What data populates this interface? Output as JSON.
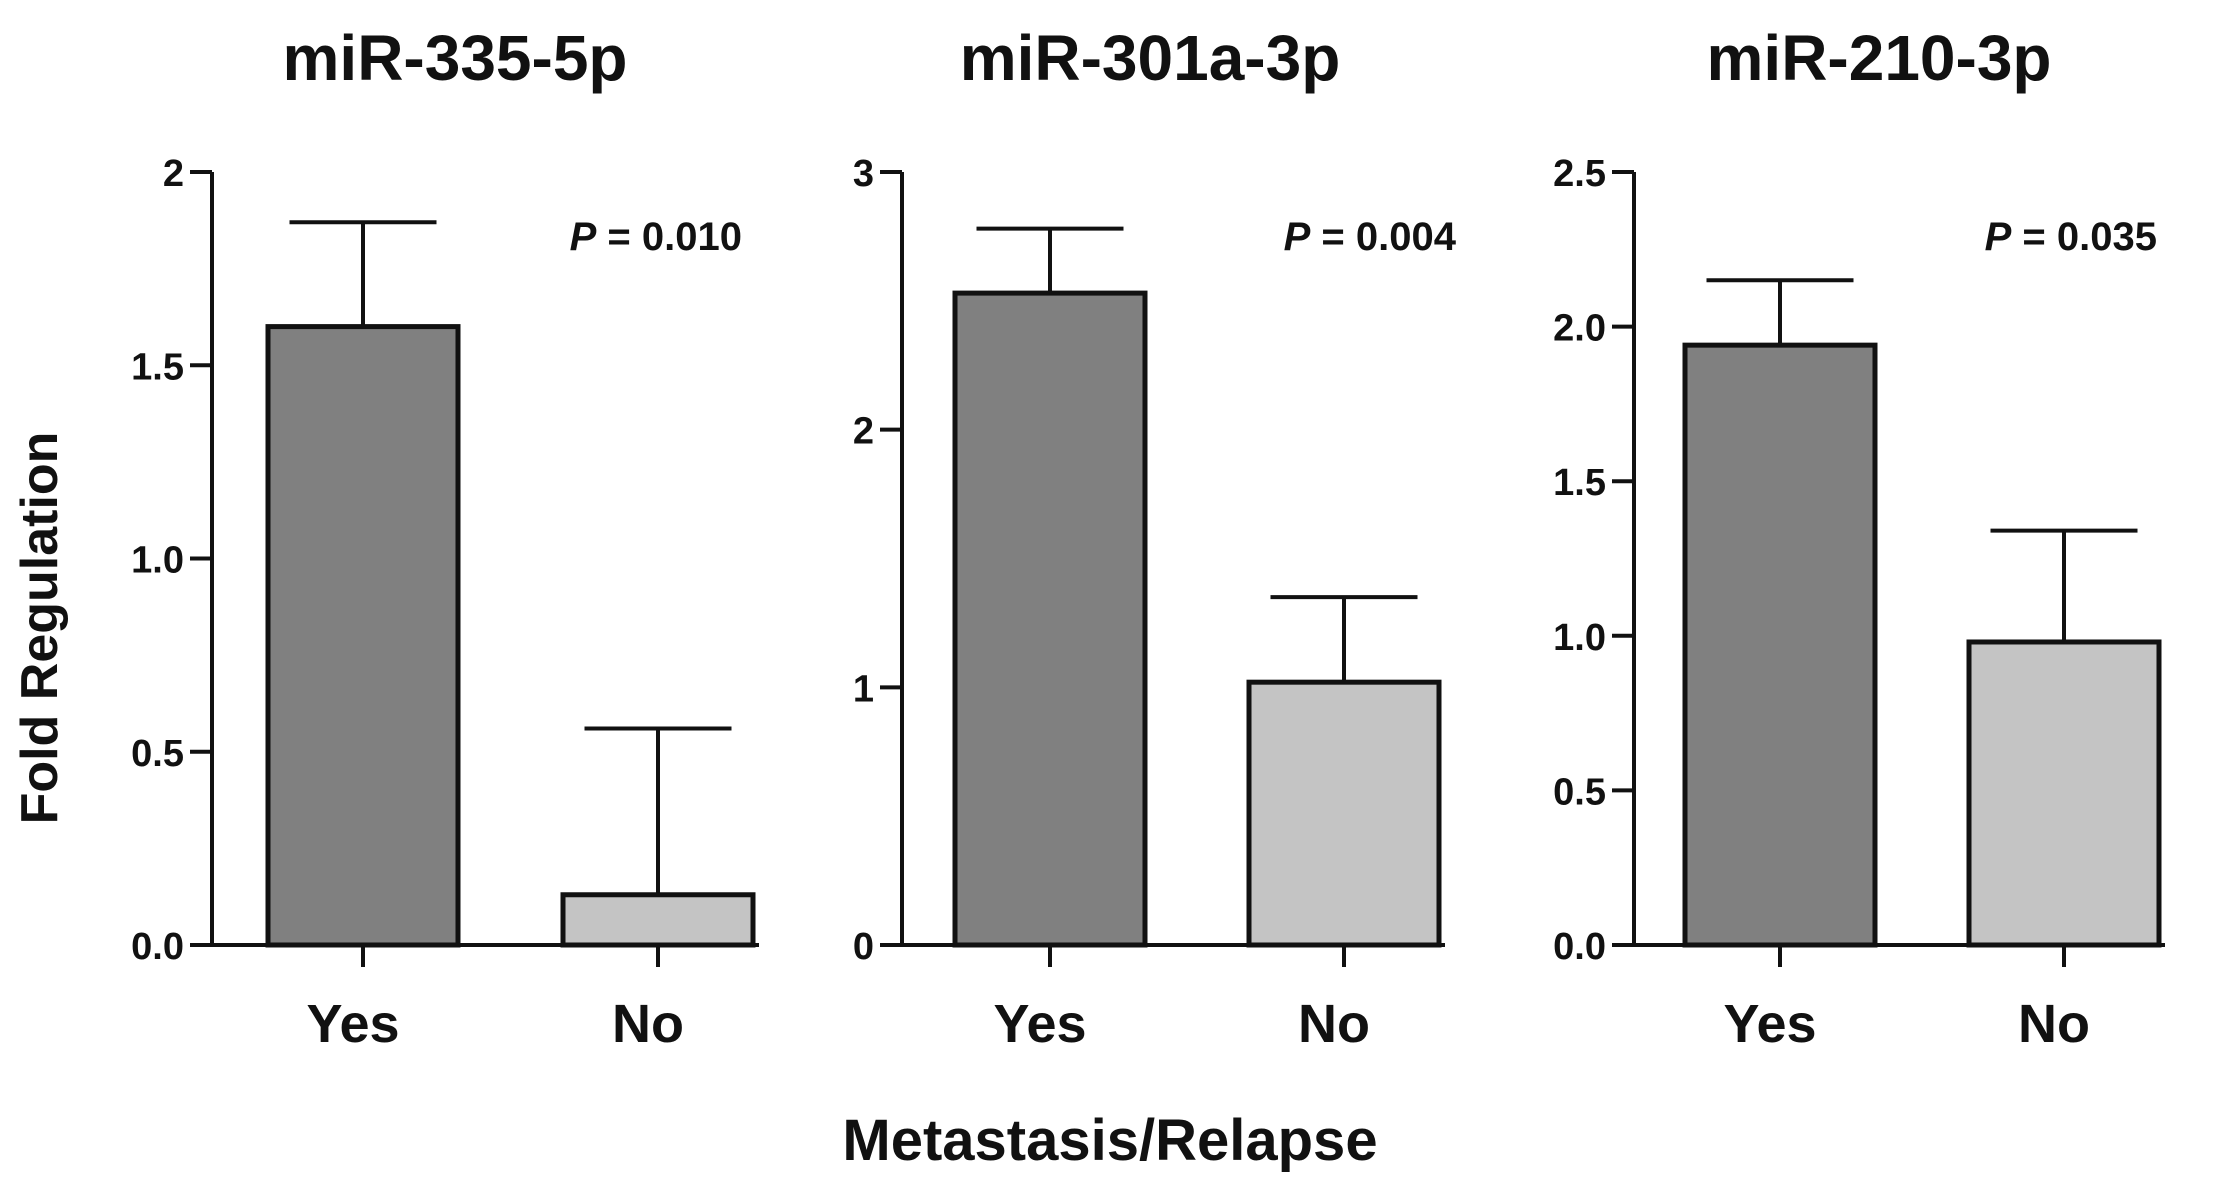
{
  "figure": {
    "ylabel": "Fold Regulation",
    "xlabel": "Metastasis/Relapse"
  },
  "colors": {
    "yes_bar": "#808080",
    "no_bar": "#c4c4c4",
    "axis": "#111111"
  },
  "chart_data": [
    {
      "type": "bar",
      "title": "miR-335-5p",
      "categories": [
        "Yes",
        "No"
      ],
      "values": [
        1.6,
        0.13
      ],
      "errors": [
        0.27,
        0.43
      ],
      "ylim": [
        0,
        2
      ],
      "yticks": [
        0,
        0.5,
        1,
        1.5,
        2
      ],
      "ytick_labels": [
        "0.0",
        "0.5",
        "1.0",
        "1.5",
        "2"
      ],
      "annotation": {
        "prefix": "P",
        "text": " = 0.010"
      },
      "xlabel": "Metastasis/Relapse",
      "ylabel": "Fold Regulation"
    },
    {
      "type": "bar",
      "title": "miR-301a-3p",
      "categories": [
        "Yes",
        "No"
      ],
      "values": [
        2.53,
        1.02
      ],
      "errors": [
        0.25,
        0.33
      ],
      "ylim": [
        0,
        3
      ],
      "yticks": [
        0,
        1,
        2,
        3
      ],
      "ytick_labels": [
        "0",
        "1",
        "2",
        "3"
      ],
      "annotation": {
        "prefix": "P",
        "text": " = 0.004"
      },
      "xlabel": "Metastasis/Relapse",
      "ylabel": "Fold Regulation"
    },
    {
      "type": "bar",
      "title": "miR-210-3p",
      "categories": [
        "Yes",
        "No"
      ],
      "values": [
        1.94,
        0.98
      ],
      "errors": [
        0.21,
        0.36
      ],
      "ylim": [
        0,
        2.5
      ],
      "yticks": [
        0,
        0.5,
        1,
        1.5,
        2,
        2.5
      ],
      "ytick_labels": [
        "0.0",
        "0.5",
        "1.0",
        "1.5",
        "2.0",
        "2.5"
      ],
      "annotation": {
        "prefix": "P",
        "text": " = 0.035"
      },
      "xlabel": "Metastasis/Relapse",
      "ylabel": "Fold Regulation"
    }
  ]
}
